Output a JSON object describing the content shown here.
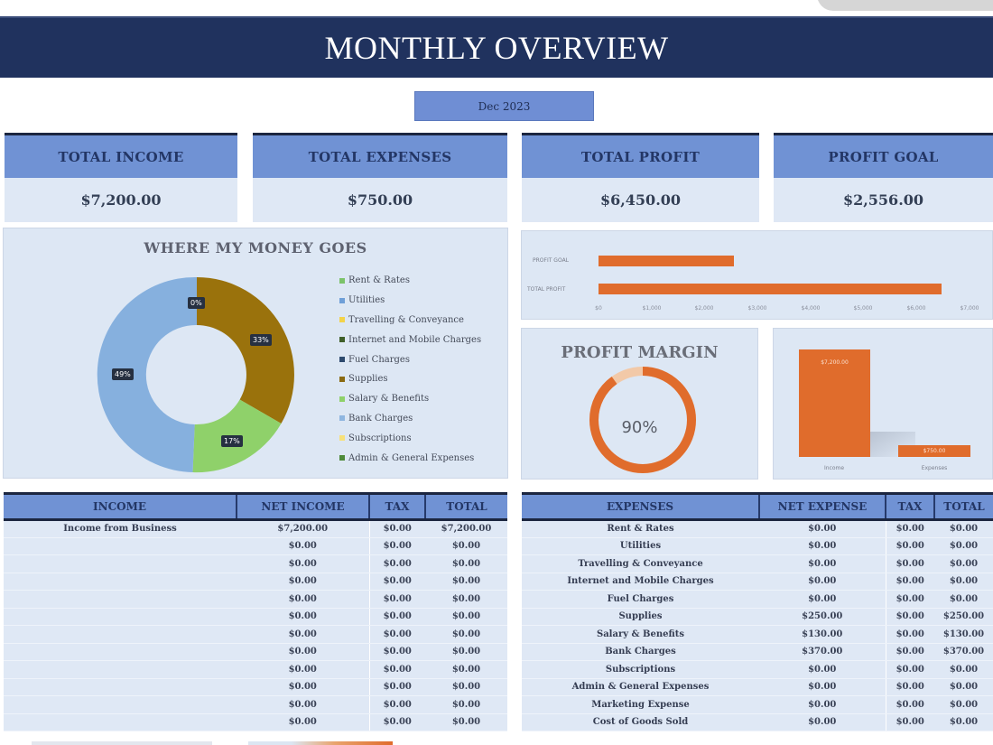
{
  "header": {
    "title": "MONTHLY OVERVIEW",
    "month": "Dec 2023"
  },
  "kpis": [
    {
      "label": "TOTAL INCOME",
      "value": "$7,200.00"
    },
    {
      "label": "TOTAL EXPENSES",
      "value": "$750.00"
    },
    {
      "label": "TOTAL PROFIT",
      "value": "$6,450.00"
    },
    {
      "label": "PROFIT GOAL",
      "value": "$2,556.00"
    }
  ],
  "money_chart": {
    "title": "WHERE MY MONEY GOES",
    "data_labels": [
      "0%",
      "33%",
      "17%",
      "49%"
    ],
    "legend": [
      {
        "label": "Rent & Rates",
        "color": "#7cc36a"
      },
      {
        "label": "Utilities",
        "color": "#6f9fd8"
      },
      {
        "label": "Travelling & Conveyance",
        "color": "#f3d34a"
      },
      {
        "label": "Internet and Mobile Charges",
        "color": "#3f5f2a"
      },
      {
        "label": "Fuel Charges",
        "color": "#2e4a6e"
      },
      {
        "label": "Supplies",
        "color": "#8a6a12"
      },
      {
        "label": "Salary & Benefits",
        "color": "#8fd16a"
      },
      {
        "label": "Bank Charges",
        "color": "#8fb6e0"
      },
      {
        "label": "Subscriptions",
        "color": "#f7e17a"
      },
      {
        "label": "Admin & General Expenses",
        "color": "#4e8a3a"
      }
    ]
  },
  "profit_chart": {
    "bars": [
      {
        "label": "PROFIT GOAL",
        "value": 2556
      },
      {
        "label": "TOTAL PROFIT",
        "value": 6450
      }
    ],
    "ticks": [
      "$0",
      "$1,000",
      "$2,000",
      "$3,000",
      "$4,000",
      "$5,000",
      "$6,000",
      "$7,000"
    ]
  },
  "profit_margin": {
    "title": "PROFIT MARGIN",
    "value": "90%"
  },
  "income_vs_expense": {
    "bars": [
      {
        "label": "Income",
        "value_label": "$7,200.00"
      },
      {
        "label": "Expenses",
        "value_label": "$750.00"
      }
    ]
  },
  "income_table": {
    "headers": [
      "INCOME",
      "NET INCOME",
      "TAX",
      "TOTAL"
    ],
    "rows": [
      [
        "Income from Business",
        "$7,200.00",
        "$0.00",
        "$7,200.00"
      ],
      [
        "",
        "$0.00",
        "$0.00",
        "$0.00"
      ],
      [
        "",
        "$0.00",
        "$0.00",
        "$0.00"
      ],
      [
        "",
        "$0.00",
        "$0.00",
        "$0.00"
      ],
      [
        "",
        "$0.00",
        "$0.00",
        "$0.00"
      ],
      [
        "",
        "$0.00",
        "$0.00",
        "$0.00"
      ],
      [
        "",
        "$0.00",
        "$0.00",
        "$0.00"
      ],
      [
        "",
        "$0.00",
        "$0.00",
        "$0.00"
      ],
      [
        "",
        "$0.00",
        "$0.00",
        "$0.00"
      ],
      [
        "",
        "$0.00",
        "$0.00",
        "$0.00"
      ],
      [
        "",
        "$0.00",
        "$0.00",
        "$0.00"
      ],
      [
        "",
        "$0.00",
        "$0.00",
        "$0.00"
      ]
    ]
  },
  "expense_table": {
    "headers": [
      "EXPENSES",
      "NET EXPENSE",
      "TAX",
      "TOTAL"
    ],
    "rows": [
      [
        "Rent & Rates",
        "$0.00",
        "$0.00",
        "$0.00"
      ],
      [
        "Utilities",
        "$0.00",
        "$0.00",
        "$0.00"
      ],
      [
        "Travelling & Conveyance",
        "$0.00",
        "$0.00",
        "$0.00"
      ],
      [
        "Internet and Mobile Charges",
        "$0.00",
        "$0.00",
        "$0.00"
      ],
      [
        "Fuel Charges",
        "$0.00",
        "$0.00",
        "$0.00"
      ],
      [
        "Supplies",
        "$250.00",
        "$0.00",
        "$250.00"
      ],
      [
        "Salary & Benefits",
        "$130.00",
        "$0.00",
        "$130.00"
      ],
      [
        "Bank Charges",
        "$370.00",
        "$0.00",
        "$370.00"
      ],
      [
        "Subscriptions",
        "$0.00",
        "$0.00",
        "$0.00"
      ],
      [
        "Admin & General Expenses",
        "$0.00",
        "$0.00",
        "$0.00"
      ],
      [
        "Marketing Expense",
        "$0.00",
        "$0.00",
        "$0.00"
      ],
      [
        "Cost of Goods Sold",
        "$0.00",
        "$0.00",
        "$0.00"
      ]
    ]
  },
  "chart_data": [
    {
      "type": "pie",
      "title": "WHERE MY MONEY GOES",
      "categories": [
        "Rent & Rates",
        "Utilities",
        "Travelling & Conveyance",
        "Internet and Mobile Charges",
        "Fuel Charges",
        "Supplies",
        "Salary & Benefits",
        "Bank Charges",
        "Subscriptions",
        "Admin & General Expenses"
      ],
      "values": [
        0,
        0,
        0,
        0,
        0,
        250,
        130,
        370,
        0,
        0
      ],
      "percent_labels": [
        "33%",
        "17%",
        "49%"
      ],
      "legend_position": "right",
      "donut": true
    },
    {
      "type": "bar",
      "orientation": "horizontal",
      "categories": [
        "PROFIT GOAL",
        "TOTAL PROFIT"
      ],
      "values": [
        2556,
        6450
      ],
      "xlim": [
        0,
        7000
      ],
      "ticks": [
        "$0",
        "$1,000",
        "$2,000",
        "$3,000",
        "$4,000",
        "$5,000",
        "$6,000",
        "$7,000"
      ]
    },
    {
      "type": "pie",
      "title": "PROFIT MARGIN",
      "donut": true,
      "values": [
        90,
        10
      ],
      "center_label": "90%"
    },
    {
      "type": "bar",
      "categories": [
        "Income",
        "Expenses"
      ],
      "values": [
        7200,
        750
      ],
      "data_labels": [
        "$7,200.00",
        "$750.00"
      ]
    }
  ]
}
